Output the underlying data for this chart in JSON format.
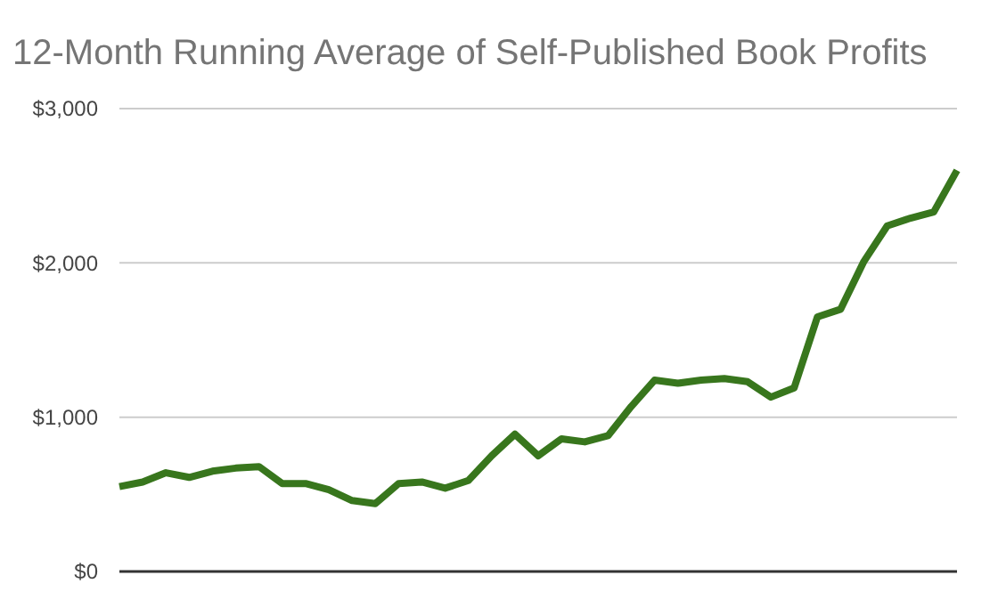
{
  "chart_data": {
    "type": "line",
    "title": "12-Month Running Average of Self-Published Book Profits",
    "categories": [
      null,
      null,
      null,
      null,
      null,
      null,
      null,
      null,
      null,
      null,
      null,
      null,
      null,
      null,
      null,
      null,
      null,
      null,
      null,
      null,
      null,
      null,
      null,
      null,
      null,
      null,
      null,
      null,
      null,
      null,
      null,
      null,
      null,
      null,
      null,
      null,
      null
    ],
    "series": [
      {
        "color": "#38761d",
        "values": [
          550,
          580,
          640,
          610,
          650,
          670,
          680,
          570,
          570,
          530,
          460,
          440,
          570,
          580,
          540,
          590,
          750,
          890,
          750,
          860,
          840,
          880,
          1070,
          1240,
          1220,
          1240,
          1250,
          1230,
          1130,
          1190,
          1650,
          1700,
          2010,
          2240,
          2290,
          2330,
          2600
        ]
      }
    ],
    "ylim": [
      0,
      3000
    ],
    "yticks": [
      {
        "value": 0,
        "label": "$0"
      },
      {
        "value": 1000,
        "label": "$1,000"
      },
      {
        "value": 2000,
        "label": "$2,000"
      },
      {
        "value": 3000,
        "label": "$3,000"
      }
    ],
    "grid": "y",
    "marker": "none",
    "line_style": "solid"
  }
}
